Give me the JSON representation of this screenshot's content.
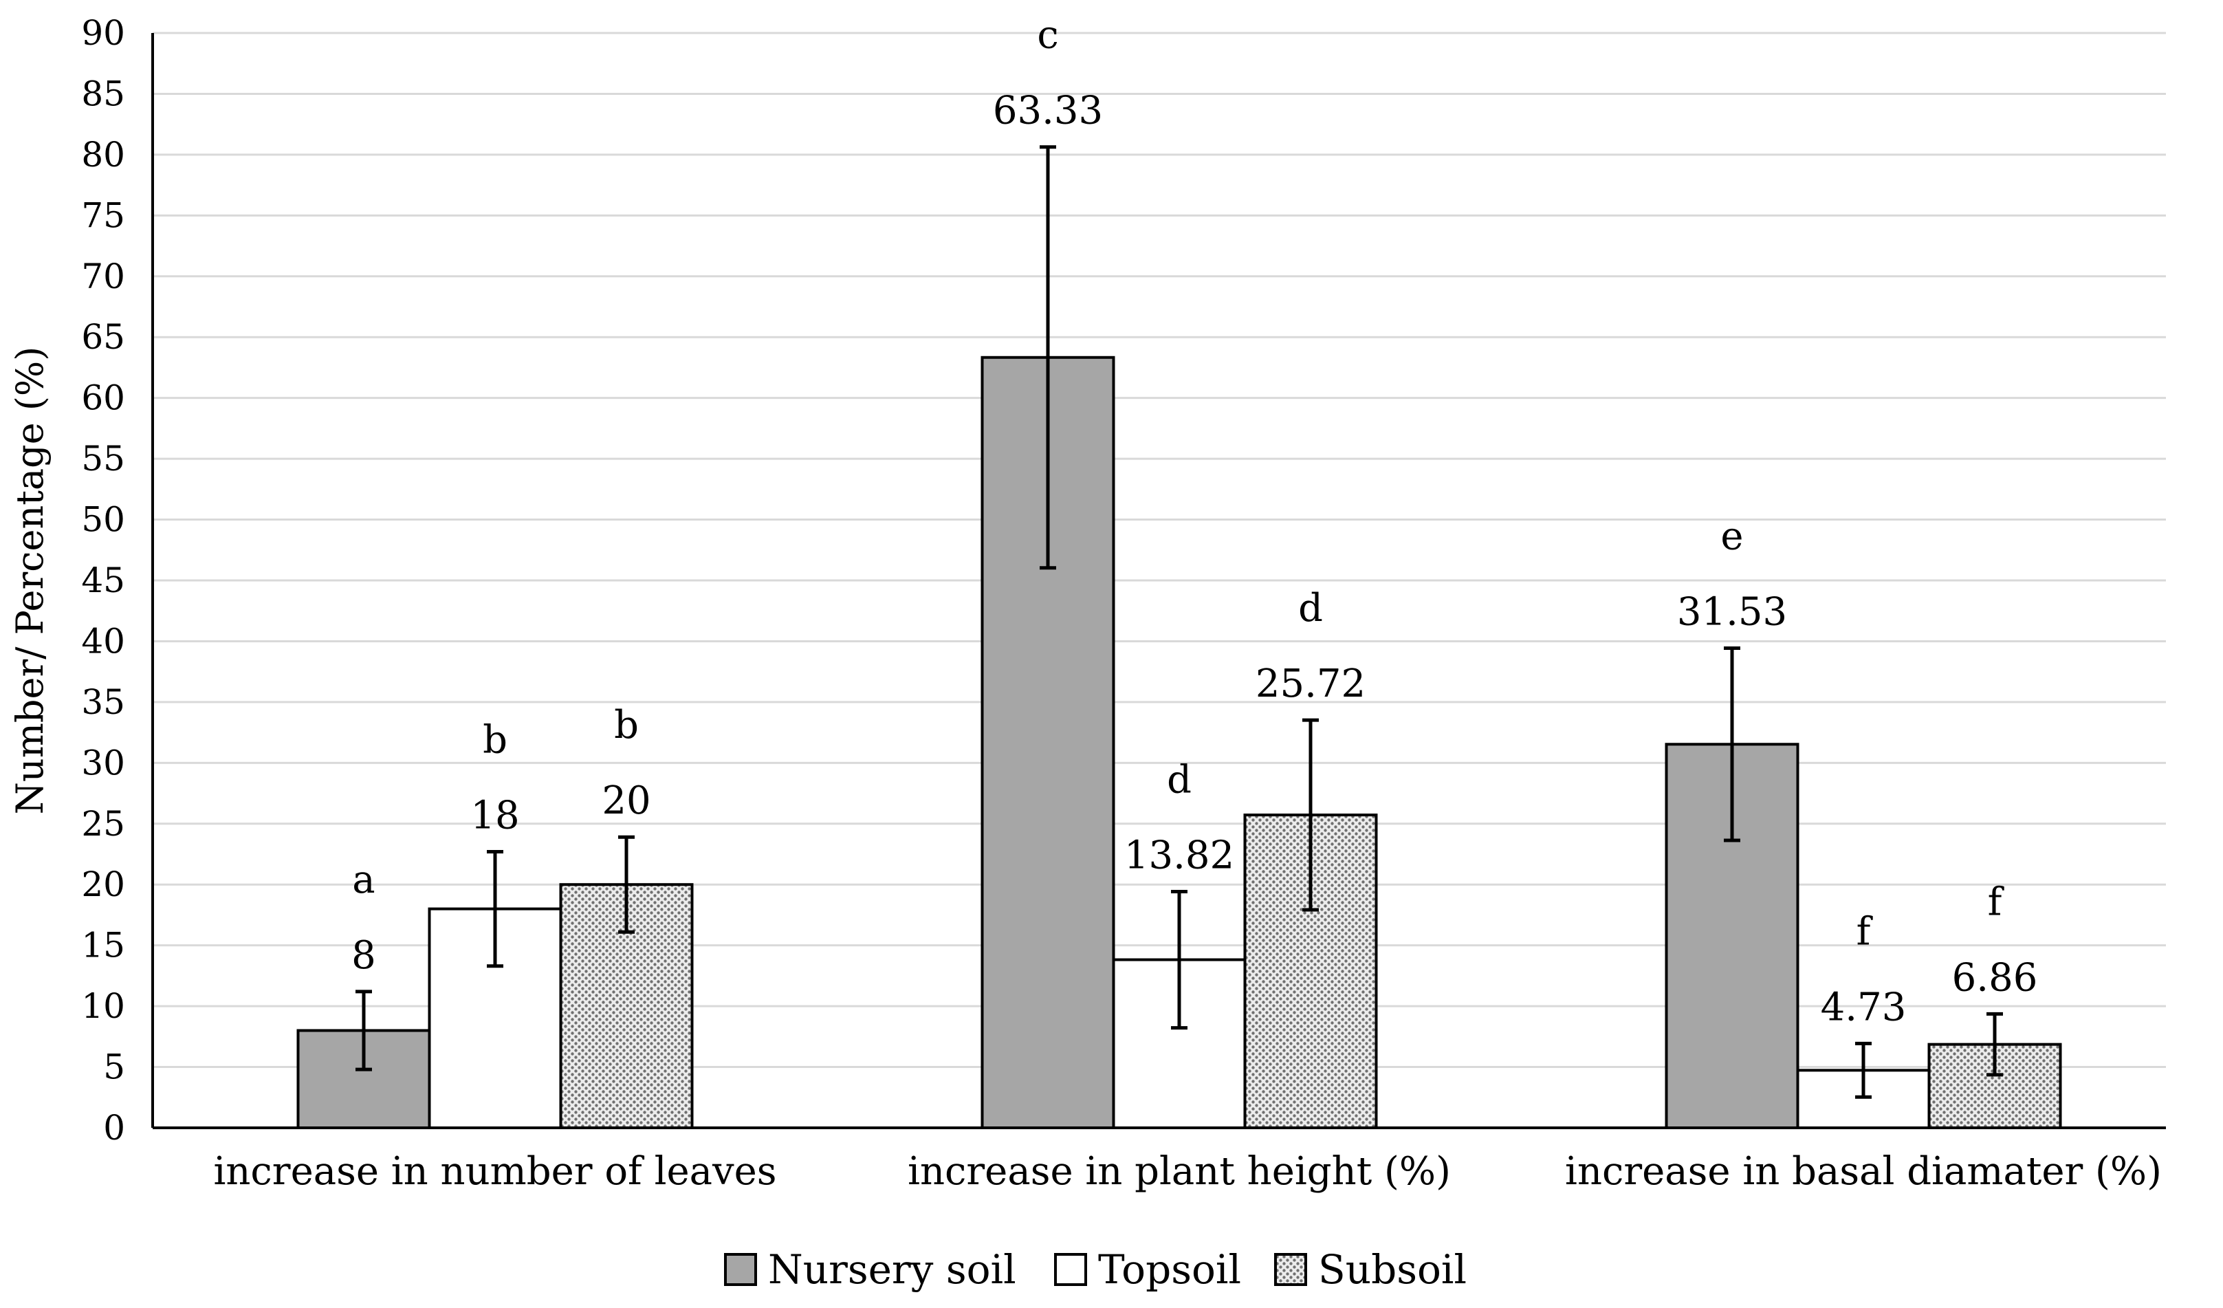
{
  "chart_data": {
    "type": "bar",
    "title": "",
    "xlabel": "",
    "ylabel": "Number/ Percentage (%)",
    "ylim": [
      0,
      90
    ],
    "ytick_step": 5,
    "grid": true,
    "legend_position": "bottom-center",
    "categories": [
      "increase in number of leaves",
      "increase in plant height (%)",
      "increase in basal diamater (%)"
    ],
    "series": [
      {
        "name": "Nursery soil",
        "fill": "#a6a6a6",
        "pattern": "solid",
        "values": [
          8,
          63.33,
          31.53
        ],
        "value_labels": [
          "8",
          "63.33",
          "31.53"
        ],
        "error": [
          3.2,
          17.3,
          7.9
        ],
        "letters": [
          "a",
          "c",
          "e"
        ]
      },
      {
        "name": "Topsoil",
        "fill": "#ffffff",
        "pattern": "solid",
        "values": [
          18,
          13.82,
          4.73
        ],
        "value_labels": [
          "18",
          "13.82",
          "4.73"
        ],
        "error": [
          4.7,
          5.6,
          2.2
        ],
        "letters": [
          "b",
          "d",
          "f"
        ]
      },
      {
        "name": "Subsoil",
        "fill": "#d9d9d9",
        "pattern": "dotted",
        "values": [
          20,
          25.72,
          6.86
        ],
        "value_labels": [
          "20",
          "25.72",
          "6.86"
        ],
        "error": [
          3.9,
          7.8,
          2.5
        ],
        "letters": [
          "b",
          "d",
          "f"
        ]
      }
    ],
    "colors": {
      "axis": "#000000",
      "grid": "#d9d9d9",
      "bar_stroke": "#000000"
    }
  }
}
